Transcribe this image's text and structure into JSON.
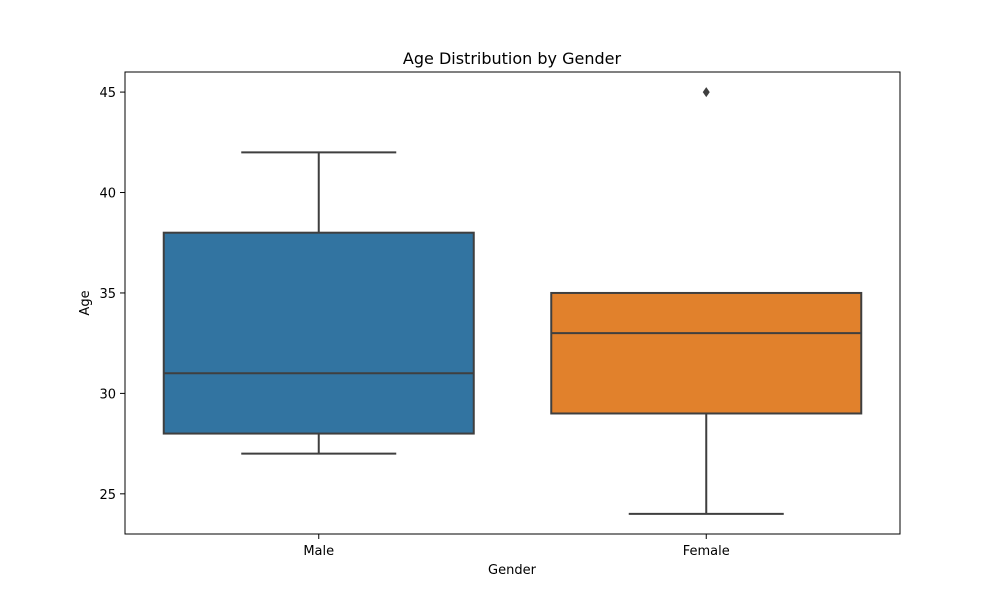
{
  "chart_data": {
    "type": "box",
    "title": "Age Distribution by Gender",
    "xlabel": "Gender",
    "ylabel": "Age",
    "ylim": [
      23,
      46
    ],
    "yticks": [
      25,
      30,
      35,
      40,
      45
    ],
    "grid": false,
    "categories": [
      "Male",
      "Female"
    ],
    "boxes": [
      {
        "category": "Male",
        "whisker_low": 27,
        "q1": 28,
        "median": 31,
        "q3": 38,
        "whisker_high": 42,
        "outliers": [],
        "color": "#3274a1"
      },
      {
        "category": "Female",
        "whisker_low": 24,
        "q1": 29,
        "median": 33,
        "q3": 35,
        "whisker_high": 35,
        "outliers": [
          45
        ],
        "color": "#e1812c"
      }
    ]
  }
}
